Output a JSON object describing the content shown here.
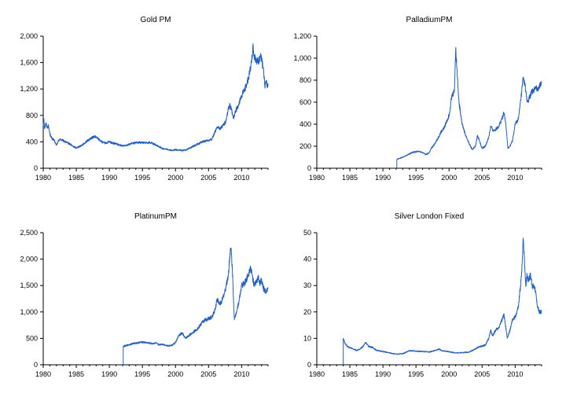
{
  "series_color": "#1f5fd4",
  "chart_data": [
    {
      "type": "line",
      "title": "Gold PM",
      "xlim": [
        1980,
        2014
      ],
      "ylim": [
        0,
        2000
      ],
      "xticks": [
        "1980",
        "1985",
        "1990",
        "1995",
        "2000",
        "2005",
        "2010"
      ],
      "yticks": [
        "0",
        "400",
        "800",
        "1,200",
        "1,600",
        "2,000"
      ],
      "x": [
        1980.0,
        1980.1,
        1980.2,
        1980.4,
        1980.6,
        1980.8,
        1981.0,
        1981.3,
        1981.6,
        1982.0,
        1982.3,
        1982.5,
        1983.0,
        1983.5,
        1984.0,
        1984.5,
        1985.0,
        1985.5,
        1986.0,
        1986.5,
        1987.0,
        1987.5,
        1987.9,
        1988.5,
        1989.0,
        1989.5,
        1990.0,
        1990.5,
        1991.0,
        1991.5,
        1992.0,
        1992.5,
        1993.0,
        1993.5,
        1994.0,
        1994.5,
        1995.0,
        1995.5,
        1996.0,
        1996.5,
        1997.0,
        1997.5,
        1998.0,
        1998.5,
        1999.0,
        1999.5,
        2000.0,
        2000.5,
        2001.0,
        2001.5,
        2002.0,
        2002.5,
        2003.0,
        2003.5,
        2004.0,
        2004.5,
        2005.0,
        2005.5,
        2006.0,
        2006.4,
        2006.8,
        2007.2,
        2007.6,
        2008.0,
        2008.2,
        2008.5,
        2008.8,
        2009.0,
        2009.5,
        2010.0,
        2010.5,
        2011.0,
        2011.3,
        2011.5,
        2011.7,
        2011.9,
        2012.2,
        2012.5,
        2012.8,
        2013.0,
        2013.2,
        2013.4,
        2013.5,
        2013.7,
        2014.0
      ],
      "y": [
        650,
        750,
        600,
        680,
        620,
        640,
        520,
        450,
        430,
        350,
        410,
        440,
        420,
        390,
        370,
        330,
        310,
        330,
        360,
        400,
        440,
        470,
        480,
        430,
        390,
        380,
        400,
        380,
        370,
        350,
        340,
        350,
        360,
        380,
        385,
        390,
        390,
        385,
        390,
        380,
        350,
        330,
        300,
        290,
        280,
        270,
        280,
        275,
        270,
        275,
        300,
        320,
        350,
        370,
        400,
        410,
        420,
        440,
        560,
        620,
        600,
        660,
        700,
        900,
        950,
        880,
        750,
        850,
        950,
        1100,
        1200,
        1350,
        1500,
        1600,
        1850,
        1700,
        1650,
        1600,
        1700,
        1650,
        1550,
        1400,
        1250,
        1300,
        1250
      ]
    },
    {
      "type": "line",
      "title": "PalladiumPM",
      "xlim": [
        1980,
        2014
      ],
      "ylim": [
        0,
        1200
      ],
      "xticks": [
        "1980",
        "1985",
        "1990",
        "1995",
        "2000",
        "2005",
        "2010"
      ],
      "yticks": [
        "0",
        "200",
        "400",
        "600",
        "800",
        "1,000",
        "1,200"
      ],
      "x": [
        1992.1,
        1992.1,
        1992.5,
        1993.0,
        1993.5,
        1994.0,
        1994.5,
        1995.0,
        1995.5,
        1996.0,
        1996.5,
        1997.0,
        1997.3,
        1997.6,
        1998.0,
        1998.4,
        1998.8,
        1999.2,
        1999.6,
        2000.0,
        2000.4,
        2000.8,
        2001.0,
        2001.2,
        2001.5,
        2002.0,
        2002.5,
        2003.0,
        2003.5,
        2004.0,
        2004.3,
        2004.6,
        2005.0,
        2005.5,
        2006.0,
        2006.3,
        2006.7,
        2007.0,
        2007.5,
        2008.0,
        2008.3,
        2008.6,
        2008.9,
        2009.2,
        2009.6,
        2010.0,
        2010.5,
        2011.0,
        2011.2,
        2011.5,
        2011.8,
        2012.0,
        2012.5,
        2013.0,
        2013.5,
        2014.0
      ],
      "y": [
        0,
        80,
        90,
        100,
        115,
        130,
        145,
        150,
        155,
        140,
        125,
        140,
        180,
        200,
        240,
        280,
        330,
        360,
        420,
        480,
        650,
        700,
        1080,
        900,
        600,
        400,
        300,
        230,
        170,
        200,
        300,
        250,
        180,
        200,
        280,
        380,
        340,
        350,
        380,
        450,
        500,
        400,
        180,
        200,
        250,
        400,
        450,
        700,
        820,
        750,
        600,
        620,
        690,
        720,
        730,
        780
      ]
    },
    {
      "type": "line",
      "title": "PlatinumPM",
      "xlim": [
        1980,
        2014
      ],
      "ylim": [
        0,
        2500
      ],
      "xticks": [
        "1980",
        "1985",
        "1990",
        "1995",
        "2000",
        "2005",
        "2010"
      ],
      "yticks": [
        "0",
        "500",
        "1,000",
        "1,500",
        "2,000",
        "2,500"
      ],
      "x": [
        1992.1,
        1992.1,
        1992.5,
        1993.0,
        1993.5,
        1994.0,
        1994.5,
        1995.0,
        1995.5,
        1996.0,
        1996.5,
        1997.0,
        1997.5,
        1998.0,
        1998.5,
        1999.0,
        1999.5,
        2000.0,
        2000.5,
        2001.0,
        2001.5,
        2002.0,
        2002.5,
        2003.0,
        2003.5,
        2004.0,
        2004.5,
        2005.0,
        2005.5,
        2006.0,
        2006.3,
        2006.6,
        2007.0,
        2007.5,
        2008.0,
        2008.2,
        2008.4,
        2008.6,
        2008.9,
        2009.2,
        2009.6,
        2010.0,
        2010.5,
        2011.0,
        2011.3,
        2011.6,
        2011.9,
        2012.2,
        2012.5,
        2012.8,
        2013.0,
        2013.3,
        2013.6,
        2014.0
      ],
      "y": [
        0,
        350,
        360,
        380,
        400,
        410,
        420,
        430,
        420,
        410,
        400,
        410,
        380,
        390,
        370,
        360,
        370,
        420,
        550,
        600,
        500,
        550,
        600,
        650,
        700,
        800,
        850,
        870,
        900,
        1050,
        1250,
        1150,
        1200,
        1400,
        1700,
        2050,
        2200,
        1800,
        850,
        1000,
        1200,
        1500,
        1550,
        1700,
        1850,
        1700,
        1500,
        1550,
        1650,
        1550,
        1600,
        1450,
        1400,
        1450
      ]
    },
    {
      "type": "line",
      "title": "Silver London Fixed",
      "xlim": [
        1980,
        2014
      ],
      "ylim": [
        0,
        50
      ],
      "xticks": [
        "1980",
        "1985",
        "1990",
        "1995",
        "2000",
        "2005",
        "2010"
      ],
      "yticks": [
        "0",
        "10",
        "20",
        "30",
        "40",
        "50"
      ],
      "x": [
        1984.0,
        1984.0,
        1984.3,
        1984.6,
        1985.0,
        1985.5,
        1986.0,
        1986.5,
        1987.0,
        1987.4,
        1987.8,
        1988.5,
        1989.0,
        1990.0,
        1991.0,
        1992.0,
        1993.0,
        1994.0,
        1995.0,
        1996.0,
        1997.0,
        1998.0,
        1998.5,
        1999.0,
        2000.0,
        2001.0,
        2002.0,
        2003.0,
        2004.0,
        2004.5,
        2005.0,
        2005.5,
        2006.0,
        2006.3,
        2006.6,
        2007.0,
        2007.5,
        2008.0,
        2008.3,
        2008.8,
        2009.2,
        2009.6,
        2010.0,
        2010.5,
        2011.0,
        2011.2,
        2011.4,
        2011.6,
        2011.8,
        2012.0,
        2012.3,
        2012.6,
        2013.0,
        2013.3,
        2013.6,
        2014.0
      ],
      "y": [
        0,
        10,
        8,
        7,
        6.5,
        6,
        5.5,
        5.8,
        7,
        8.5,
        7,
        6.5,
        5.5,
        5,
        4.5,
        4,
        4.2,
        5.3,
        5.2,
        5,
        4.8,
        5.5,
        6,
        5.2,
        5,
        4.5,
        4.6,
        4.8,
        6,
        6.8,
        7,
        7.5,
        10,
        13,
        11,
        13,
        14,
        17,
        19,
        10,
        13,
        17,
        18,
        22,
        35,
        48,
        40,
        30,
        34,
        32,
        34,
        30,
        29,
        23,
        20,
        20
      ]
    }
  ]
}
